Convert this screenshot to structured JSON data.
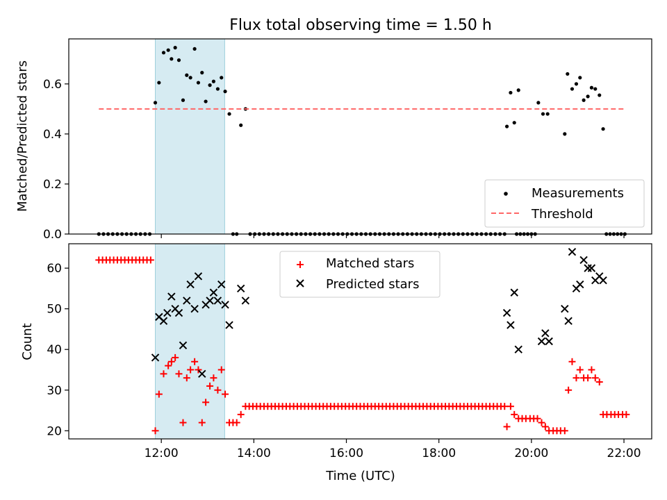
{
  "chart_data": {
    "title": "Flux total observing time = 1.50 h",
    "x_unit": "hours (UTC)",
    "xlim": [
      10.0,
      22.6
    ],
    "xticks": [
      12,
      14,
      16,
      18,
      20,
      22
    ],
    "xtick_labels": [
      "12:00",
      "14:00",
      "16:00",
      "18:00",
      "20:00",
      "22:00"
    ],
    "xlabel": "Time (UTC)",
    "highlight": {
      "x_start": 11.87,
      "x_end": 13.37,
      "color": "#add8e6"
    },
    "panels": [
      {
        "type": "scatter",
        "ylabel": "Matched/Predicted stars",
        "ylim": [
          0.0,
          0.78
        ],
        "yticks": [
          0.0,
          0.2,
          0.4,
          0.6
        ],
        "ytick_labels": [
          "0.0",
          "0.2",
          "0.4",
          "0.6"
        ],
        "legend_position": "lower-right",
        "series": [
          {
            "name": "Measurements",
            "marker": "dot",
            "color": "#000000",
            "points": [
              [
                11.87,
                0.525
              ],
              [
                11.95,
                0.605
              ],
              [
                12.05,
                0.725
              ],
              [
                12.15,
                0.735
              ],
              [
                12.22,
                0.7
              ],
              [
                12.3,
                0.745
              ],
              [
                12.38,
                0.695
              ],
              [
                12.47,
                0.535
              ],
              [
                12.55,
                0.635
              ],
              [
                12.63,
                0.625
              ],
              [
                12.72,
                0.74
              ],
              [
                12.8,
                0.605
              ],
              [
                12.88,
                0.645
              ],
              [
                12.96,
                0.53
              ],
              [
                13.05,
                0.595
              ],
              [
                13.13,
                0.61
              ],
              [
                13.22,
                0.58
              ],
              [
                13.3,
                0.625
              ],
              [
                13.38,
                0.57
              ],
              [
                13.47,
                0.48
              ],
              [
                13.72,
                0.435
              ],
              [
                13.82,
                0.5
              ],
              [
                19.47,
                0.43
              ],
              [
                19.55,
                0.565
              ],
              [
                19.63,
                0.445
              ],
              [
                19.72,
                0.575
              ],
              [
                20.15,
                0.525
              ],
              [
                20.25,
                0.48
              ],
              [
                20.35,
                0.48
              ],
              [
                20.72,
                0.4
              ],
              [
                20.78,
                0.64
              ],
              [
                20.88,
                0.58
              ],
              [
                20.97,
                0.6
              ],
              [
                21.05,
                0.625
              ],
              [
                21.13,
                0.535
              ],
              [
                21.22,
                0.55
              ],
              [
                21.3,
                0.585
              ],
              [
                21.38,
                0.58
              ],
              [
                21.47,
                0.555
              ],
              [
                21.55,
                0.42
              ]
            ],
            "zero_ranges": [
              [
                10.65,
                11.82,
                0.1
              ],
              [
                13.55,
                13.7,
                0.08
              ],
              [
                13.92,
                19.45,
                0.1
              ],
              [
                19.68,
                20.12,
                0.08
              ],
              [
                21.62,
                22.05,
                0.08
              ]
            ]
          },
          {
            "name": "Threshold",
            "type": "line",
            "style": "dashed",
            "color": "#ff6666",
            "x": [
              10.65,
              22.0
            ],
            "y": [
              0.5,
              0.5
            ]
          }
        ]
      },
      {
        "type": "scatter",
        "ylabel": "Count",
        "ylim": [
          18,
          66
        ],
        "yticks": [
          20,
          30,
          40,
          50,
          60
        ],
        "ytick_labels": [
          "20",
          "30",
          "40",
          "50",
          "60"
        ],
        "legend_position": "upper-center",
        "series": [
          {
            "name": "Matched stars",
            "marker": "plus",
            "color": "#ff0000",
            "points": [
              [
                11.87,
                20
              ],
              [
                11.95,
                29
              ],
              [
                12.05,
                34
              ],
              [
                12.15,
                36
              ],
              [
                12.22,
                37
              ],
              [
                12.3,
                38
              ],
              [
                12.38,
                34
              ],
              [
                12.47,
                22
              ],
              [
                12.55,
                33
              ],
              [
                12.63,
                35
              ],
              [
                12.72,
                37
              ],
              [
                12.8,
                35
              ],
              [
                12.88,
                22
              ],
              [
                12.96,
                27
              ],
              [
                13.05,
                31
              ],
              [
                13.13,
                33
              ],
              [
                13.22,
                30
              ],
              [
                13.3,
                35
              ],
              [
                13.38,
                29
              ],
              [
                13.47,
                22
              ],
              [
                13.55,
                22
              ],
              [
                13.63,
                22
              ],
              [
                13.72,
                24
              ],
              [
                13.82,
                26
              ],
              [
                19.47,
                21
              ],
              [
                19.55,
                26
              ],
              [
                19.63,
                24
              ],
              [
                19.72,
                23
              ],
              [
                19.8,
                23
              ],
              [
                19.88,
                23
              ],
              [
                19.97,
                23
              ],
              [
                20.05,
                23
              ],
              [
                20.13,
                23
              ],
              [
                20.22,
                22
              ],
              [
                20.3,
                21
              ],
              [
                20.38,
                20
              ],
              [
                20.47,
                20
              ],
              [
                20.55,
                20
              ],
              [
                20.63,
                20
              ],
              [
                20.72,
                20
              ],
              [
                20.8,
                30
              ],
              [
                20.88,
                37
              ],
              [
                20.97,
                33
              ],
              [
                21.05,
                35
              ],
              [
                21.13,
                33
              ],
              [
                21.22,
                33
              ],
              [
                21.3,
                35
              ],
              [
                21.38,
                33
              ],
              [
                21.47,
                32
              ],
              [
                21.55,
                24
              ],
              [
                21.63,
                24
              ],
              [
                21.72,
                24
              ],
              [
                21.8,
                24
              ],
              [
                21.88,
                24
              ],
              [
                21.97,
                24
              ],
              [
                22.05,
                24
              ]
            ],
            "const_ranges": [
              [
                10.65,
                11.82,
                0.08,
                62
              ],
              [
                13.9,
                19.45,
                0.08,
                26
              ]
            ]
          },
          {
            "name": "Predicted stars",
            "marker": "x",
            "color": "#000000",
            "points": [
              [
                11.87,
                38
              ],
              [
                11.95,
                48
              ],
              [
                12.05,
                47
              ],
              [
                12.13,
                49
              ],
              [
                12.22,
                53
              ],
              [
                12.3,
                50
              ],
              [
                12.38,
                49
              ],
              [
                12.47,
                41
              ],
              [
                12.55,
                52
              ],
              [
                12.63,
                56
              ],
              [
                12.72,
                50
              ],
              [
                12.8,
                58
              ],
              [
                12.88,
                34
              ],
              [
                12.96,
                51
              ],
              [
                13.05,
                52
              ],
              [
                13.13,
                54
              ],
              [
                13.22,
                52
              ],
              [
                13.3,
                56
              ],
              [
                13.38,
                51
              ],
              [
                13.47,
                46
              ],
              [
                13.72,
                55
              ],
              [
                13.82,
                52
              ],
              [
                19.47,
                49
              ],
              [
                19.55,
                46
              ],
              [
                19.63,
                54
              ],
              [
                19.72,
                40
              ],
              [
                20.22,
                42
              ],
              [
                20.3,
                44
              ],
              [
                20.38,
                42
              ],
              [
                20.72,
                50
              ],
              [
                20.8,
                47
              ],
              [
                20.88,
                64
              ],
              [
                20.97,
                55
              ],
              [
                21.05,
                56
              ],
              [
                21.13,
                62
              ],
              [
                21.22,
                60
              ],
              [
                21.3,
                60
              ],
              [
                21.38,
                57
              ],
              [
                21.47,
                58
              ],
              [
                21.55,
                57
              ]
            ]
          }
        ]
      }
    ]
  }
}
